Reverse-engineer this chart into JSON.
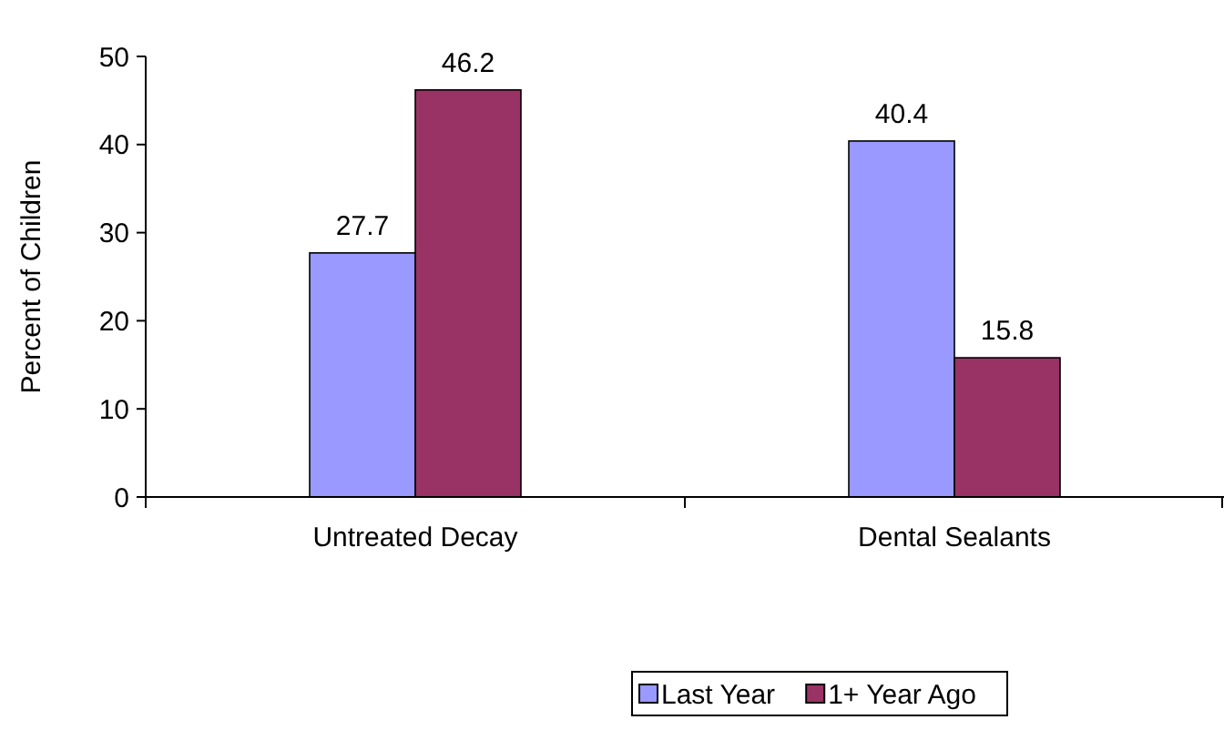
{
  "chart_data": {
    "type": "bar",
    "ylabel": "Percent of Children",
    "categories": [
      "Untreated Decay",
      "Dental Sealants"
    ],
    "series": [
      {
        "name": "Last Year",
        "color": "#9999ff",
        "values": [
          27.7,
          40.4
        ]
      },
      {
        "name": "1+ Year Ago",
        "color": "#993366",
        "values": [
          46.2,
          15.8
        ]
      }
    ],
    "ylim": [
      0,
      50
    ],
    "yticks": [
      0,
      10,
      20,
      30,
      40,
      50
    ],
    "data_labels": true,
    "grid": false,
    "legend": "bottom"
  }
}
